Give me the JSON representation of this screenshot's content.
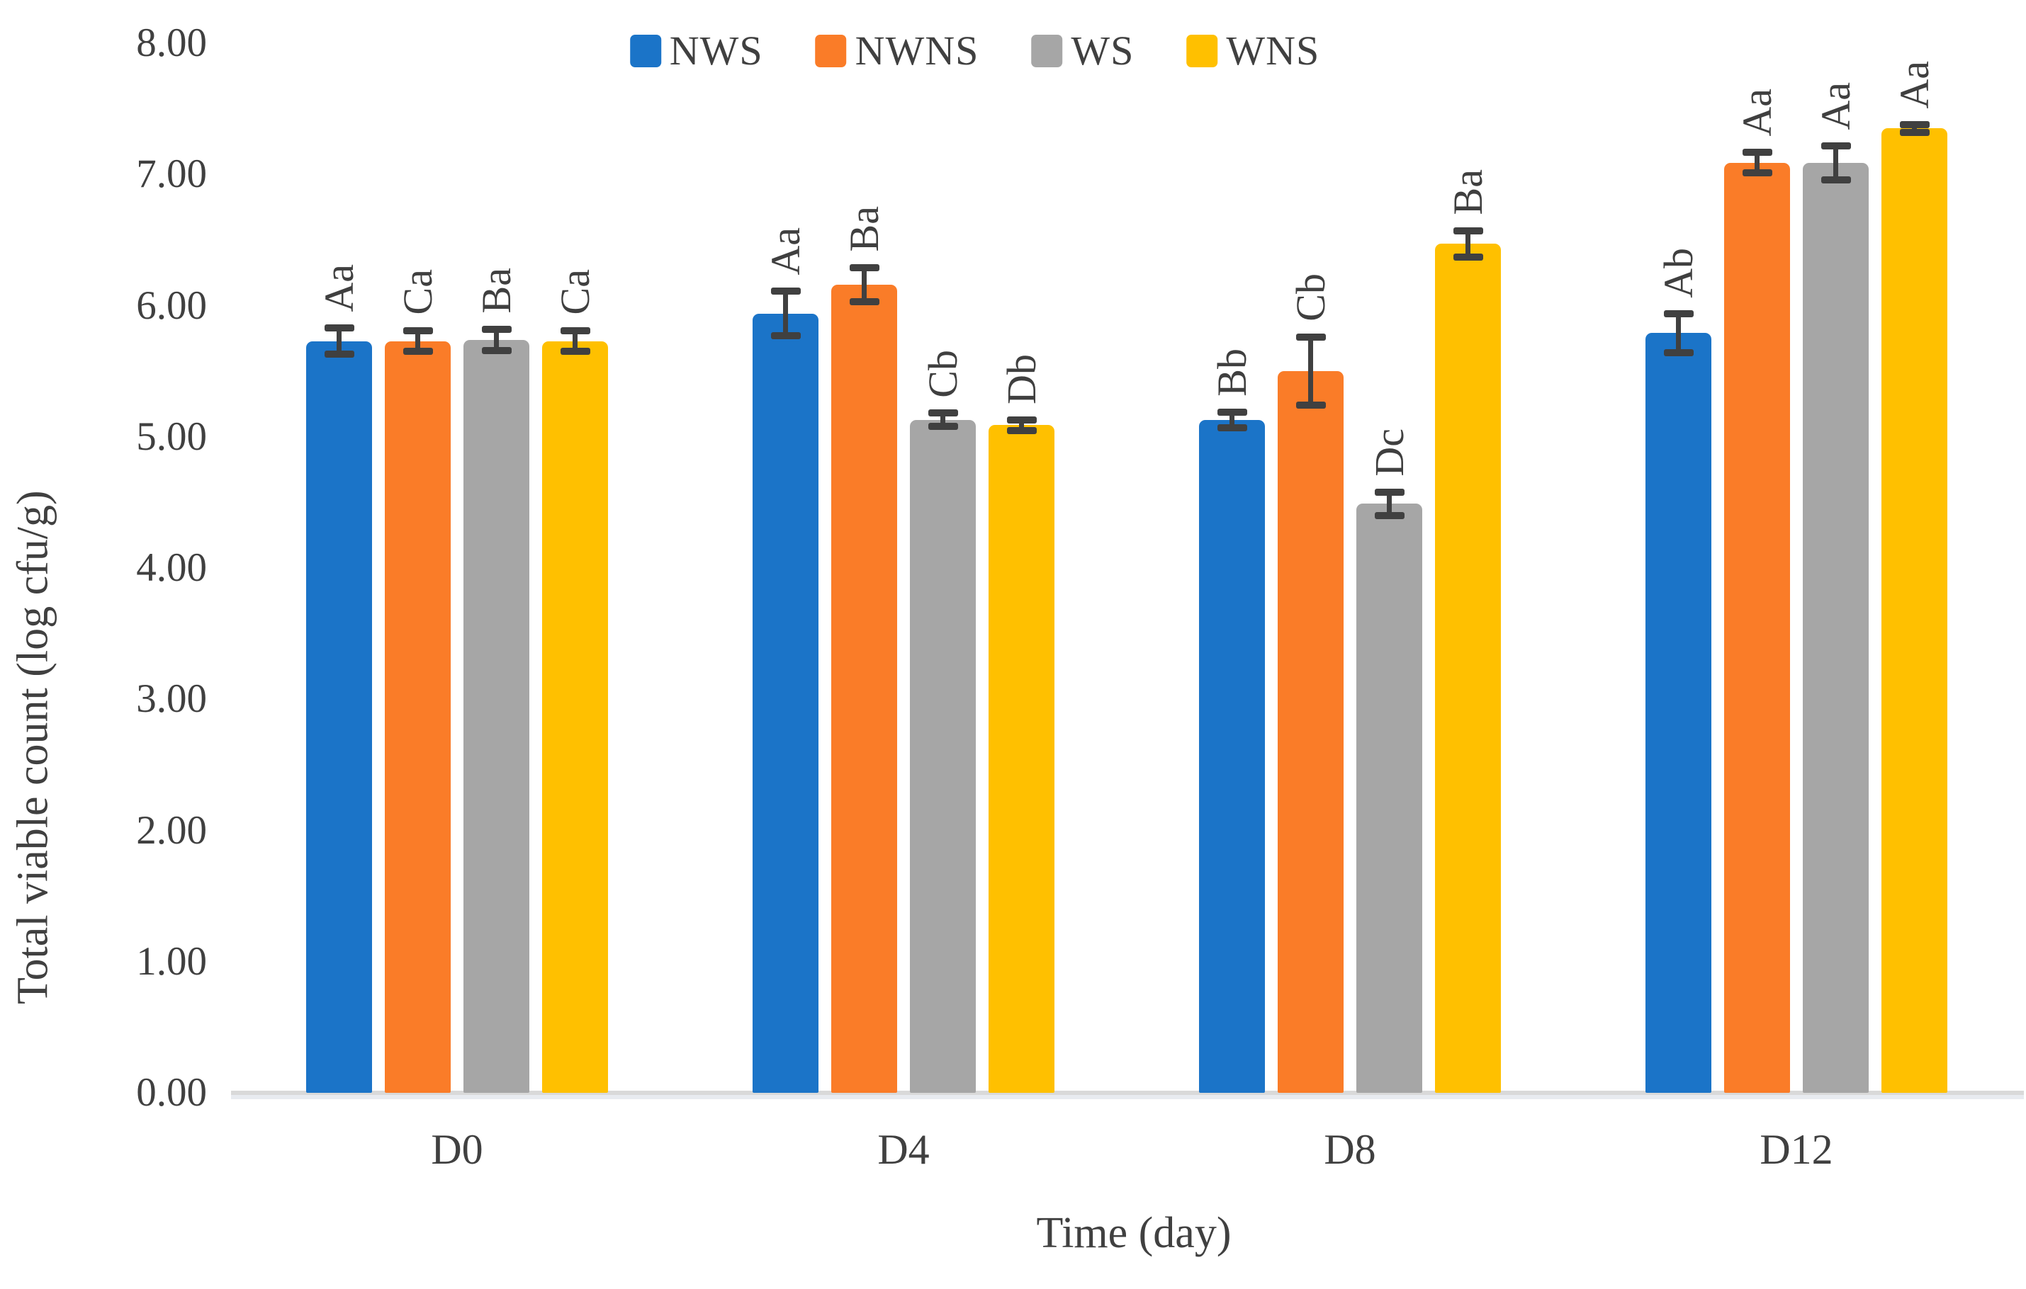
{
  "chart_data": {
    "type": "bar",
    "title": "",
    "xlabel": "Time (day)",
    "ylabel": "Total viable count (log cfu/g)",
    "ylim": [
      0,
      8
    ],
    "yticks": [
      "0.00",
      "1.00",
      "2.00",
      "3.00",
      "4.00",
      "5.00",
      "6.00",
      "7.00",
      "8.00"
    ],
    "categories": [
      "D0",
      "D4",
      "D8",
      "D12"
    ],
    "series": [
      {
        "name": "NWS",
        "color": "#1b74c8",
        "values": [
          5.73,
          5.94,
          5.13,
          5.79
        ],
        "errors": [
          0.1,
          0.17,
          0.06,
          0.15
        ],
        "letters": [
          "Aa",
          "Aa",
          "Bb",
          "Ab"
        ]
      },
      {
        "name": "NWNS",
        "color": "#fa7c28",
        "values": [
          5.73,
          6.16,
          5.5,
          7.09
        ],
        "errors": [
          0.08,
          0.13,
          0.26,
          0.08
        ],
        "letters": [
          "Ca",
          "Ba",
          "Cb",
          "Aa"
        ]
      },
      {
        "name": "WS",
        "color": "#a6a6a6",
        "values": [
          5.74,
          5.13,
          4.49,
          7.09
        ],
        "errors": [
          0.08,
          0.05,
          0.09,
          0.13
        ],
        "letters": [
          "Ba",
          "Cb",
          "Dc",
          "Aa"
        ]
      },
      {
        "name": "WNS",
        "color": "#ffc000",
        "values": [
          5.73,
          5.09,
          6.47,
          7.35
        ],
        "errors": [
          0.08,
          0.04,
          0.1,
          0.03
        ],
        "letters": [
          "Ca",
          "Db",
          "Ba",
          "Aa"
        ]
      }
    ],
    "legend_position": "top",
    "grid": false,
    "error_bar_color": "#404040",
    "axis_line_color": "#d9d9d9",
    "text_color": "#404040"
  }
}
